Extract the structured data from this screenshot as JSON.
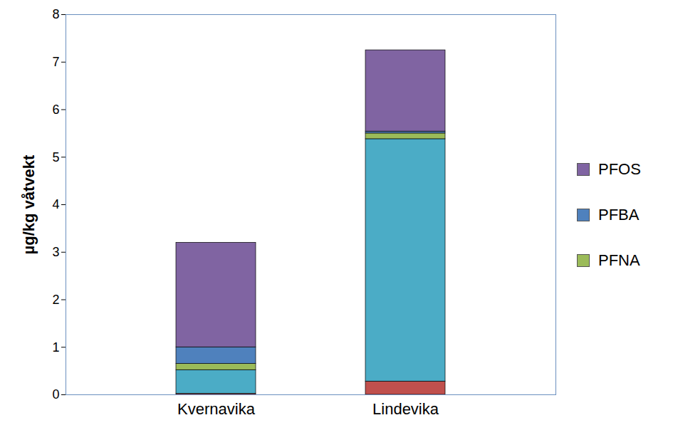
{
  "chart_data": {
    "type": "bar",
    "stacked": true,
    "categories": [
      "Kvernavika",
      "Lindevika"
    ],
    "ylabel": "µg/kg våtvekt",
    "ylim": [
      0,
      8
    ],
    "yticks": [
      0,
      1,
      2,
      3,
      4,
      5,
      6,
      7,
      8
    ],
    "grid": false,
    "legend": "right",
    "series": [
      {
        "name": null,
        "color": "#c0504d",
        "values": [
          0.02,
          0.28
        ]
      },
      {
        "name": null,
        "color": "#4bacc6",
        "values": [
          0.5,
          5.1
        ]
      },
      {
        "name": "PFNA",
        "color": "#9bbb59",
        "values": [
          0.13,
          0.12
        ]
      },
      {
        "name": "PFBA",
        "color": "#4f81bd",
        "values": [
          0.35,
          0.04
        ]
      },
      {
        "name": "PFOS",
        "color": "#8064a2",
        "values": [
          2.2,
          1.71
        ]
      }
    ]
  }
}
